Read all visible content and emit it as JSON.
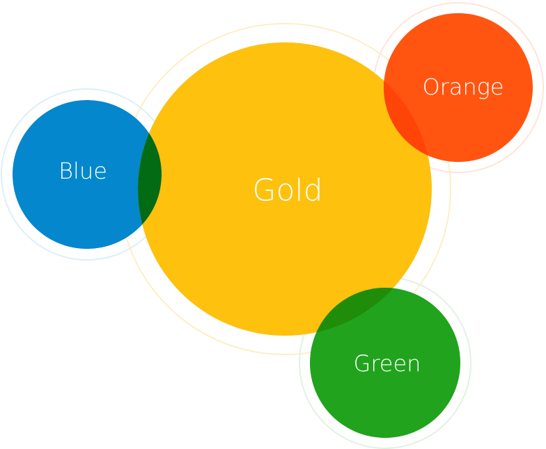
{
  "diagram": {
    "circles": [
      {
        "id": "gold",
        "label": "Gold",
        "color": "#FDC10E",
        "ring_color": "#FDEFC4",
        "overlap_color": null
      },
      {
        "id": "blue",
        "label": "Blue",
        "color": "#0487CC",
        "ring_color": "#DCEFF8",
        "overlap_with_gold": "#036B13"
      },
      {
        "id": "orange",
        "label": "Orange",
        "color": "#FF5511",
        "ring_color": "#FDE5DA",
        "overlap_with_gold": "#FF4408"
      },
      {
        "id": "green",
        "label": "Green",
        "color": "#21A31D",
        "ring_color": "#E0F2E2",
        "overlap_with_gold": "#1F8D09"
      }
    ]
  }
}
